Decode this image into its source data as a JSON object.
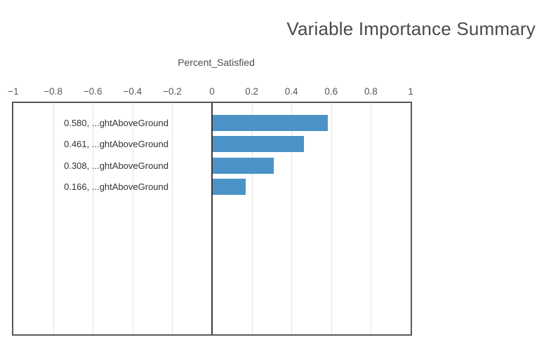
{
  "title": "Variable Importance Summary",
  "subtitle": "Percent_Satisfied",
  "colors": {
    "bar": "#4b93c6",
    "title_text": "#4a4a4a",
    "axis_text": "#555555",
    "category_text": "#333333",
    "plot_border": "#57585a",
    "gridline": "#e4e4e4",
    "zero_line": "#3a3a3a",
    "background": "#ffffff"
  },
  "chart_data": {
    "type": "bar",
    "orientation": "horizontal",
    "title": "Variable Importance Summary",
    "subtitle": "Percent_Satisfied",
    "categories": [
      "0.580, ...ghtAboveGround",
      "0.461, ...ghtAboveGround",
      "0.308, ...ghtAboveGround",
      "0.166, ...ghtAboveGround"
    ],
    "values": [
      0.58,
      0.461,
      0.308,
      0.166
    ],
    "xlim": [
      -1,
      1
    ],
    "x_tick_values": [
      -1,
      -0.8,
      -0.6,
      -0.4,
      -0.2,
      0,
      0.2,
      0.4,
      0.6,
      0.8,
      1
    ],
    "x_tick_labels": [
      "−1",
      "−0.8",
      "−0.6",
      "−0.4",
      "−0.2",
      "0",
      "0.2",
      "0.4",
      "0.6",
      "0.8",
      "1"
    ],
    "grid": true,
    "legend": "none",
    "xlabel": "",
    "ylabel": ""
  }
}
